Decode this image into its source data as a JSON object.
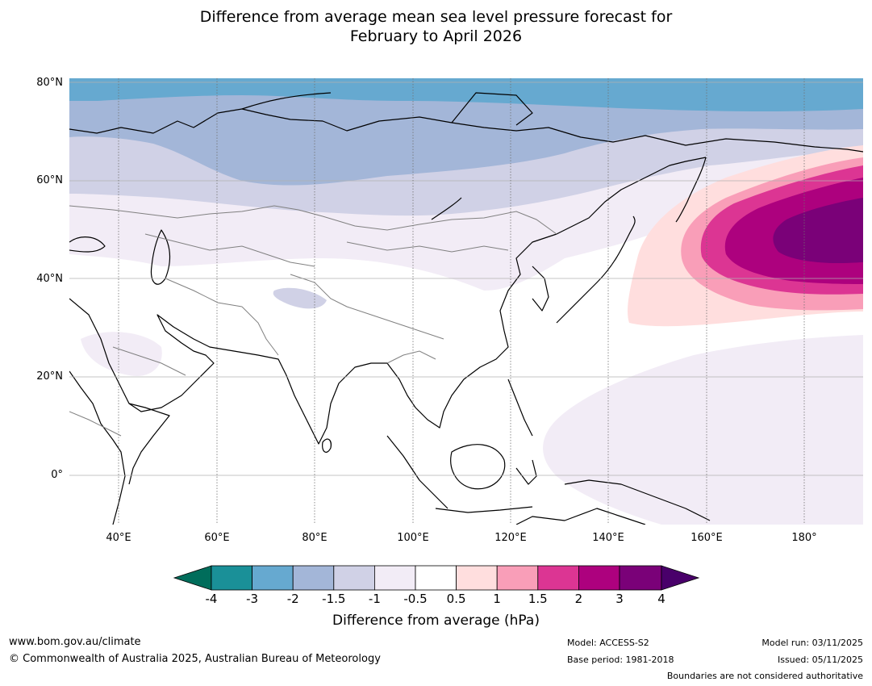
{
  "title": {
    "line1": "Difference from average mean sea level pressure forecast for",
    "line2": "February to April 2026"
  },
  "map": {
    "lon_range": [
      30,
      192
    ],
    "lat_range": [
      -10,
      81
    ],
    "latitude_labels": [
      "80°N",
      "60°N",
      "40°N",
      "20°N",
      "0°"
    ],
    "longitude_labels": [
      "40°E",
      "60°E",
      "80°E",
      "100°E",
      "120°E",
      "140°E",
      "160°E",
      "180°"
    ]
  },
  "colorbar": {
    "tick_labels": [
      "-4",
      "-3",
      "-2",
      "-1.5",
      "-1",
      "-0.5",
      "0.5",
      "1",
      "1.5",
      "2",
      "3",
      "4"
    ],
    "colors": [
      "#006d5b",
      "#1a9098",
      "#66a9d0",
      "#a3b6d8",
      "#d0d1e6",
      "#f2ecf6",
      "#ffffff",
      "#ffdede",
      "#f99eb8",
      "#dc3593",
      "#ad017e",
      "#7a0178",
      "#49006a"
    ],
    "label": "Difference from average (hPa)"
  },
  "footer": {
    "website": "www.bom.gov.au/climate",
    "copyright": "© Commonwealth of Australia 2025, Australian Bureau of Meteorology",
    "model": "Model: ACCESS-S2",
    "base_period": "Base period: 1981-2018",
    "model_run": "Model run: 03/11/2025",
    "issued": "Issued: 05/11/2025",
    "disclaimer": "Boundaries are not considered authoritative"
  }
}
